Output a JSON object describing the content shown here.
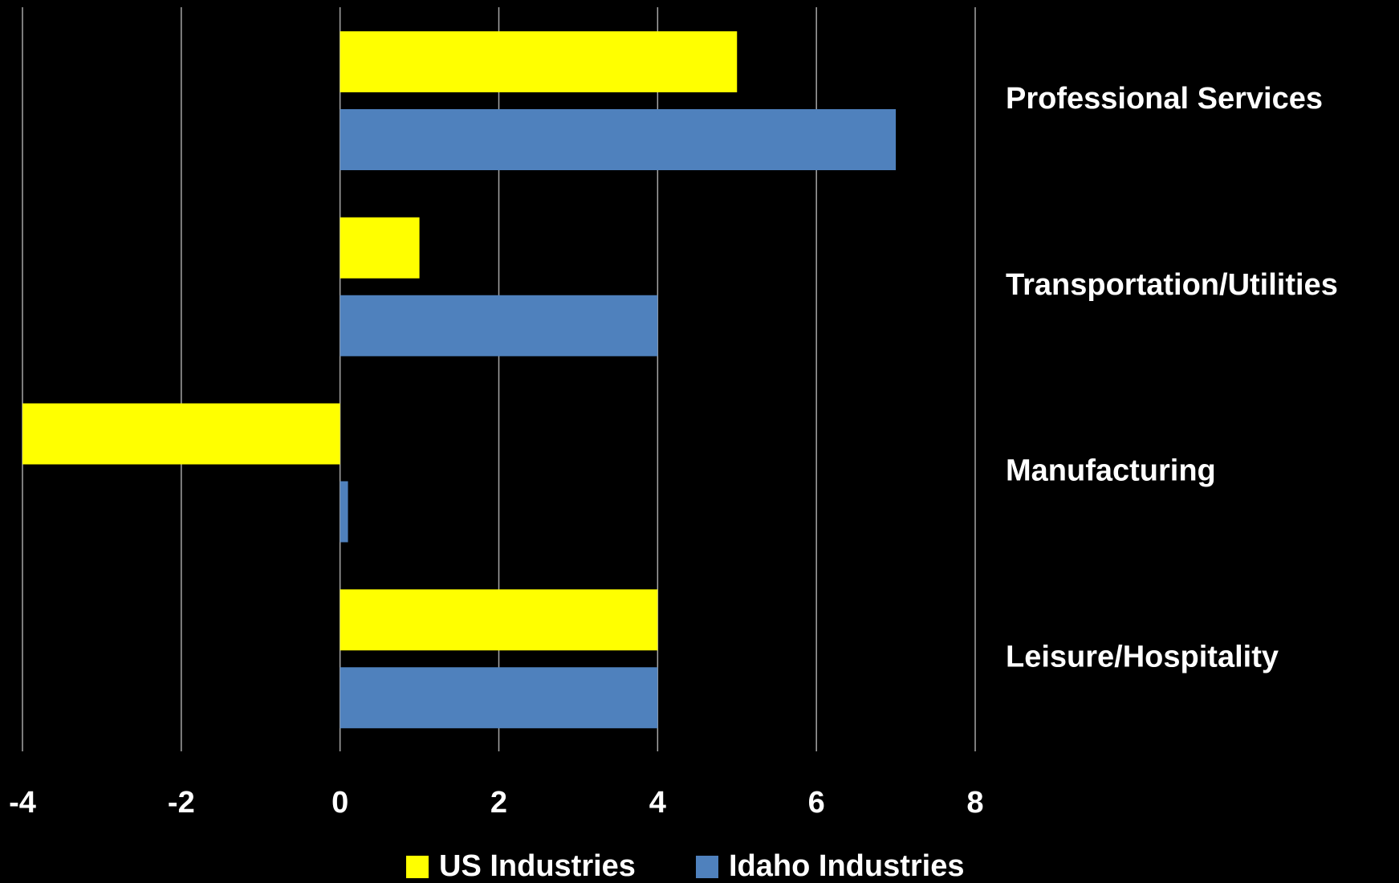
{
  "chart_data": {
    "type": "barh",
    "categories": [
      "Professional Services",
      "Transportation/Utilities",
      "Manufacturing",
      "Leisure/Hospitality"
    ],
    "series": [
      {
        "name": "US Industries",
        "color": "#ffff00",
        "values": [
          5,
          1,
          -4,
          4
        ]
      },
      {
        "name": "Idaho Industries",
        "color": "#4f81bd",
        "values": [
          7,
          4,
          0.1,
          4
        ]
      }
    ],
    "xlim": [
      -4,
      8
    ],
    "xticks": [
      -4,
      -2,
      0,
      2,
      4,
      6,
      8
    ],
    "grid": true,
    "legend": "bottom"
  }
}
